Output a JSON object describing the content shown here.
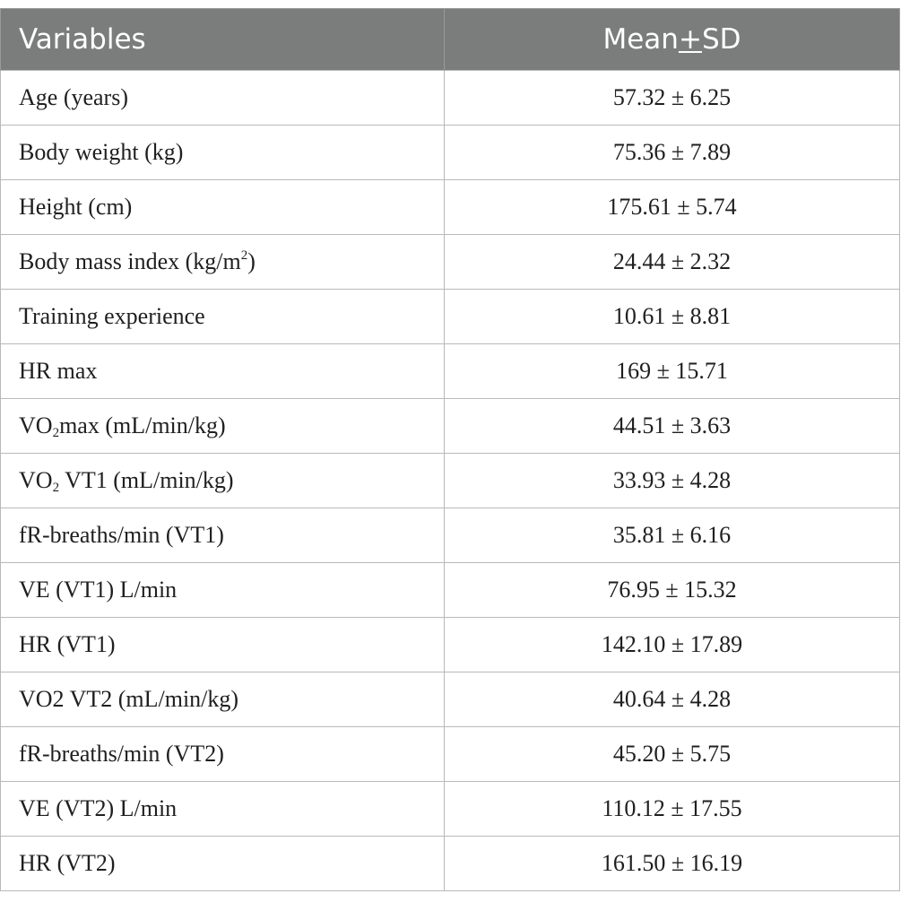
{
  "table": {
    "header": {
      "variables": "Variables",
      "mean_prefix": "Mean",
      "mean_pm": "+",
      "mean_suffix": "SD"
    },
    "rows": [
      {
        "pre": "Age (years)",
        "sub": "",
        "sup": "",
        "post": "",
        "value": "57.32 ± 6.25"
      },
      {
        "pre": "Body weight (kg)",
        "sub": "",
        "sup": "",
        "post": "",
        "value": "75.36 ± 7.89"
      },
      {
        "pre": "Height (cm)",
        "sub": "",
        "sup": "",
        "post": "",
        "value": "175.61 ± 5.74"
      },
      {
        "pre": "Body mass index (kg/m",
        "sub": "",
        "sup": "2",
        "post": ")",
        "value": "24.44 ± 2.32"
      },
      {
        "pre": "Training experience",
        "sub": "",
        "sup": "",
        "post": "",
        "value": "10.61 ± 8.81"
      },
      {
        "pre": "HR max",
        "sub": "",
        "sup": "",
        "post": "",
        "value": "169 ± 15.71"
      },
      {
        "pre": "VO",
        "sub": "2",
        "sup": "",
        "post": "max (mL/min/kg)",
        "value": "44.51 ± 3.63"
      },
      {
        "pre": "VO",
        "sub": "2",
        "sup": "",
        "post": " VT1 (mL/min/kg)",
        "value": "33.93 ± 4.28"
      },
      {
        "pre": "fR-breaths/min (VT1)",
        "sub": "",
        "sup": "",
        "post": "",
        "value": "35.81 ± 6.16"
      },
      {
        "pre": "VE (VT1) L/min",
        "sub": "",
        "sup": "",
        "post": "",
        "value": "76.95 ± 15.32"
      },
      {
        "pre": "HR (VT1)",
        "sub": "",
        "sup": "",
        "post": "",
        "value": "142.10 ± 17.89"
      },
      {
        "pre": "VO2 VT2 (mL/min/kg)",
        "sub": "",
        "sup": "",
        "post": "",
        "value": "40.64 ± 4.28"
      },
      {
        "pre": "fR-breaths/min (VT2)",
        "sub": "",
        "sup": "",
        "post": "",
        "value": "45.20 ± 5.75"
      },
      {
        "pre": "VE (VT2) L/min",
        "sub": "",
        "sup": "",
        "post": "",
        "value": "110.12 ± 17.55"
      },
      {
        "pre": "HR (VT2)",
        "sub": "",
        "sup": "",
        "post": "",
        "value": "161.50 ± 16.19"
      }
    ]
  }
}
